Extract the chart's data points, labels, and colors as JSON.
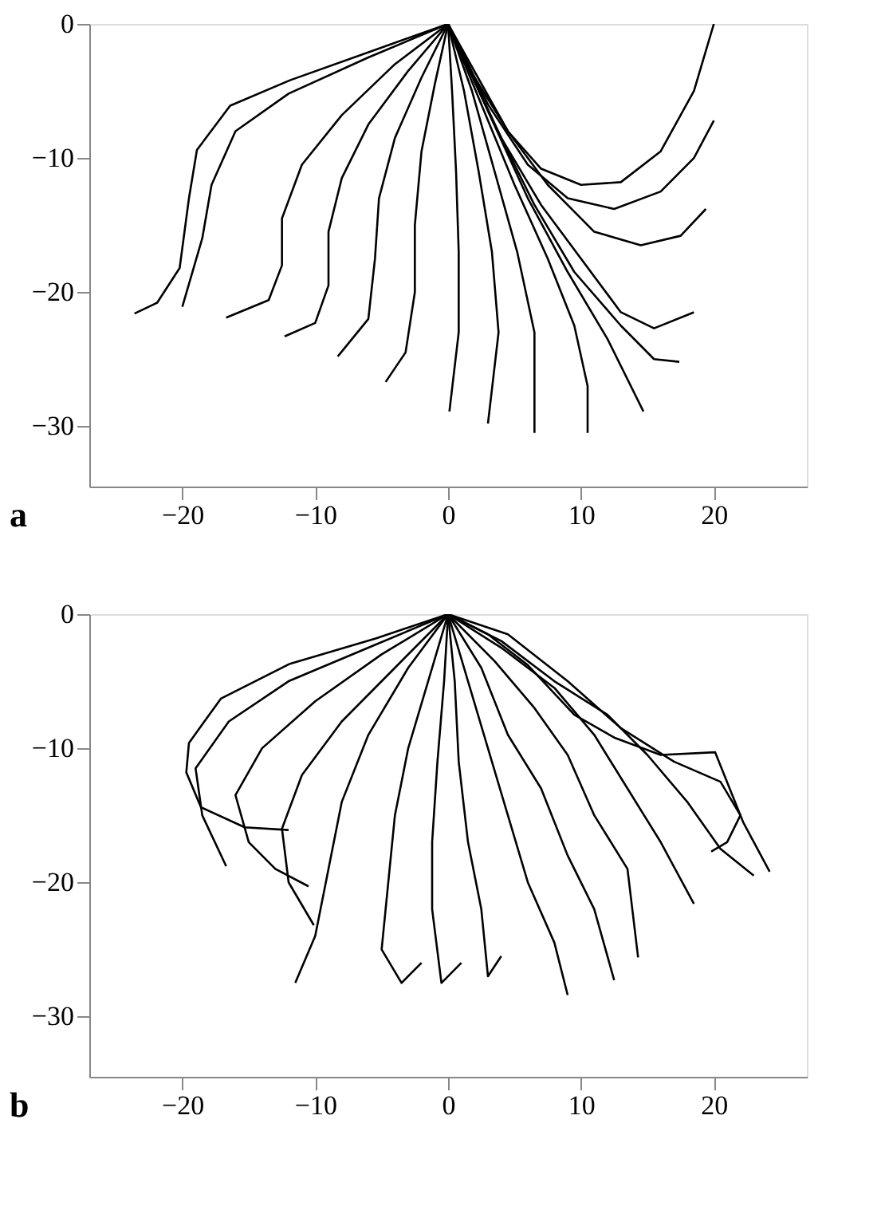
{
  "chart_data": [
    {
      "type": "line",
      "annotations": [
        "a"
      ],
      "xlim": [
        -27,
        27
      ],
      "ylim": [
        -34.5,
        0
      ],
      "xticks": [
        -20,
        -10,
        0,
        10,
        20
      ],
      "yticks": [
        0,
        -10,
        -20,
        -30
      ],
      "grid": false,
      "legend": false,
      "series": [
        {
          "color": "#000000",
          "x": [
            0,
            -5.4,
            -11.9,
            -16.4,
            -18.9,
            -19.5,
            -20.2,
            -21.9,
            -23.6
          ],
          "values": [
            0,
            -1.9,
            -4.2,
            -6.1,
            -9.4,
            -13.0,
            -18.2,
            -20.8,
            -21.6
          ]
        },
        {
          "color": "#000000",
          "x": [
            0,
            -6,
            -12,
            -16,
            -17.8,
            -18.5,
            -20
          ],
          "values": [
            0,
            -2.5,
            -5.2,
            -8,
            -12,
            -16,
            -21.1
          ]
        },
        {
          "color": "#000000",
          "x": [
            0,
            -4,
            -8,
            -11,
            -12.5,
            -12.5,
            -13.5,
            -16.7
          ],
          "values": [
            0,
            -3,
            -6.8,
            -10.5,
            -14.5,
            -18,
            -20.6,
            -21.9
          ]
        },
        {
          "color": "#000000",
          "x": [
            0,
            -3,
            -6,
            -8,
            -9,
            -9,
            -10,
            -12.3
          ],
          "values": [
            0,
            -3.5,
            -7.5,
            -11.5,
            -15.5,
            -19.5,
            -22.3,
            -23.3
          ]
        },
        {
          "color": "#000000",
          "x": [
            0,
            -2,
            -4,
            -5.2,
            -5.5,
            -6,
            -8.3
          ],
          "values": [
            0,
            -4,
            -8.5,
            -13,
            -17.5,
            -22,
            -24.8
          ]
        },
        {
          "color": "#000000",
          "x": [
            0,
            -1,
            -2,
            -2.5,
            -2.5,
            -3.2,
            -4.7
          ],
          "values": [
            0,
            -4.5,
            -9.5,
            -15,
            -20,
            -24.5,
            -26.7
          ]
        },
        {
          "color": "#000000",
          "x": [
            0,
            0.3,
            0.6,
            0.8,
            0.8,
            0.1
          ],
          "values": [
            0,
            -5,
            -11,
            -17,
            -23,
            -28.9
          ]
        },
        {
          "color": "#000000",
          "x": [
            0,
            1.2,
            2.3,
            3.3,
            3.8,
            3
          ],
          "values": [
            0,
            -5,
            -11,
            -17,
            -23,
            -29.8
          ]
        },
        {
          "color": "#000000",
          "x": [
            0,
            1.8,
            3.5,
            5.2,
            6.5,
            6.5
          ],
          "values": [
            0,
            -5,
            -11,
            -17,
            -23,
            -30.5
          ]
        },
        {
          "color": "#000000",
          "x": [
            0,
            2.5,
            5,
            7.5,
            9.5,
            10.5,
            10.5
          ],
          "values": [
            0,
            -6,
            -12,
            -17.5,
            -22.5,
            -27,
            -30.5
          ]
        },
        {
          "color": "#000000",
          "x": [
            0,
            3,
            6,
            9,
            12,
            14.7
          ],
          "values": [
            0,
            -6.5,
            -13,
            -18.5,
            -23.5,
            -28.9
          ]
        },
        {
          "color": "#000000",
          "x": [
            0,
            3.5,
            6.5,
            9.5,
            13,
            15.5,
            17.4
          ],
          "values": [
            0,
            -7.5,
            -13.5,
            -18.5,
            -22.5,
            -25,
            -25.2
          ]
        },
        {
          "color": "#000000",
          "x": [
            0,
            4,
            7,
            10,
            13,
            15.5,
            18.5
          ],
          "values": [
            0,
            -8.5,
            -13.5,
            -17.5,
            -21.5,
            -22.7,
            -21.5
          ]
        },
        {
          "color": "#000000",
          "x": [
            0,
            4.5,
            7.5,
            11,
            14.5,
            17.5,
            19.4
          ],
          "values": [
            0,
            -8,
            -12,
            -15.5,
            -16.5,
            -15.8,
            -13.8
          ]
        },
        {
          "color": "#000000",
          "x": [
            0,
            3,
            6,
            9,
            12.5,
            16,
            18.5,
            20
          ],
          "values": [
            0,
            -6,
            -10.5,
            -13,
            -13.8,
            -12.5,
            -10,
            -7.2
          ]
        },
        {
          "color": "#000000",
          "x": [
            0,
            2,
            4.5,
            7,
            10,
            13,
            16,
            18.5,
            20
          ],
          "values": [
            0,
            -4,
            -8,
            -10.8,
            -12,
            -11.8,
            -9.5,
            -5,
            0
          ]
        }
      ]
    },
    {
      "type": "line",
      "annotations": [
        "b"
      ],
      "xlim": [
        -27,
        27
      ],
      "ylim": [
        -34.5,
        0
      ],
      "xticks": [
        -20,
        -10,
        0,
        10,
        20
      ],
      "yticks": [
        0,
        -10,
        -20,
        -30
      ],
      "grid": false,
      "legend": false,
      "series": [
        {
          "color": "#000000",
          "x": [
            0,
            -5.4,
            -11.9,
            -17.1,
            -19.5,
            -19.7,
            -18.6,
            -15.3,
            -12
          ],
          "values": [
            0,
            -1.8,
            -3.7,
            -6.3,
            -9.6,
            -11.8,
            -14.4,
            -15.9,
            -16.1
          ]
        },
        {
          "color": "#000000",
          "x": [
            0,
            -6,
            -12,
            -16.5,
            -19,
            -18.5,
            -16.7
          ],
          "values": [
            0,
            -2.5,
            -5,
            -8,
            -11.5,
            -15,
            -18.8
          ]
        },
        {
          "color": "#000000",
          "x": [
            0,
            -5,
            -10,
            -14,
            -16,
            -15,
            -13,
            -10.5
          ],
          "values": [
            0,
            -3,
            -6.5,
            -10,
            -13.5,
            -17,
            -19,
            -20.3
          ]
        },
        {
          "color": "#000000",
          "x": [
            0,
            -4,
            -8,
            -11,
            -12.5,
            -12,
            -10.1
          ],
          "values": [
            0,
            -4,
            -8,
            -12,
            -16,
            -20,
            -23.2
          ]
        },
        {
          "color": "#000000",
          "x": [
            0,
            -3,
            -6,
            -8,
            -9,
            -10,
            -11.5
          ],
          "values": [
            0,
            -4,
            -9,
            -14,
            -19,
            -24,
            -27.5
          ]
        },
        {
          "color": "#000000",
          "x": [
            0,
            -1.5,
            -3,
            -4,
            -4.5,
            -5,
            -3.5,
            -2
          ],
          "values": [
            0,
            -5,
            -10,
            -15,
            -20,
            -25,
            -27.5,
            -26
          ]
        },
        {
          "color": "#000000",
          "x": [
            0,
            -0.3,
            -0.8,
            -1.2,
            -1.2,
            -0.5,
            1
          ],
          "values": [
            0,
            -5,
            -11,
            -17,
            -22,
            -27.5,
            -26
          ]
        },
        {
          "color": "#000000",
          "x": [
            0,
            0.5,
            0.8,
            1.5,
            2.5,
            3,
            4
          ],
          "values": [
            0,
            -5,
            -11,
            -17,
            -22,
            -27,
            -25.5
          ]
        },
        {
          "color": "#000000",
          "x": [
            0,
            1.5,
            3,
            4.5,
            6,
            8,
            9
          ],
          "values": [
            0,
            -5,
            -10,
            -15,
            -20,
            -24.5,
            -28.4
          ]
        },
        {
          "color": "#000000",
          "x": [
            0,
            2.5,
            4.5,
            7,
            9,
            11,
            12.5
          ],
          "values": [
            0,
            -4,
            -9,
            -13,
            -18,
            -22,
            -27.3
          ]
        },
        {
          "color": "#000000",
          "x": [
            0,
            3.5,
            6.5,
            9,
            11,
            13.5,
            14.3
          ],
          "values": [
            0,
            -3.5,
            -7,
            -10.5,
            -15,
            -19,
            -25.6
          ]
        },
        {
          "color": "#000000",
          "x": [
            0,
            4,
            8,
            11,
            13.5,
            16,
            18.5
          ],
          "values": [
            0,
            -2.5,
            -5.5,
            -9,
            -13,
            -17,
            -21.6
          ]
        },
        {
          "color": "#000000",
          "x": [
            0,
            4,
            8,
            12,
            15,
            18,
            20.5,
            23
          ],
          "values": [
            0,
            -2,
            -5,
            -7.5,
            -10.5,
            -14,
            -17.5,
            -19.5
          ]
        },
        {
          "color": "#000000",
          "x": [
            0,
            3,
            6,
            9.5,
            12.5,
            16,
            20.1,
            22.2,
            24.2
          ],
          "values": [
            0,
            -1.5,
            -3.8,
            -7.5,
            -9.2,
            -10.5,
            -10.3,
            -15.5,
            -19.2
          ]
        },
        {
          "color": "#000000",
          "x": [
            0,
            4.5,
            9,
            13,
            17,
            20.5,
            22,
            21,
            19.8
          ],
          "values": [
            0,
            -1.5,
            -5,
            -8.5,
            -11,
            -12.5,
            -15,
            -17,
            -17.7
          ]
        }
      ]
    }
  ]
}
